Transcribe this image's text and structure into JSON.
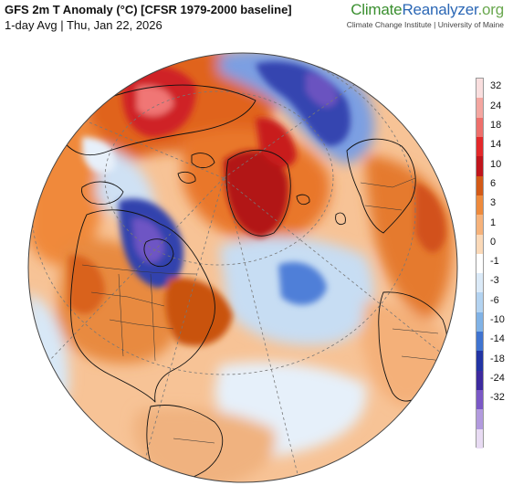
{
  "header": {
    "title": "GFS 2m T Anomaly (°C) [CFSR 1979-2000 baseline]",
    "subtitle": "1-day Avg | Thu, Jan 22, 2026"
  },
  "logo": {
    "climate": "Climate",
    "reanalyzer": "Reanalyzer",
    "tld": ".org",
    "affiliation": "Climate Change Institute | University of Maine"
  },
  "colorbar": {
    "labels": [
      "32",
      "24",
      "18",
      "14",
      "10",
      "6",
      "3",
      "1",
      "0",
      "-1",
      "-3",
      "-6",
      "-10",
      "-14",
      "-18",
      "-24",
      "-32"
    ],
    "colors": [
      "#f9dede",
      "#f4a6a0",
      "#ee6f6b",
      "#e3282a",
      "#c0151c",
      "#d35a17",
      "#ee8a3c",
      "#f6b27a",
      "#fbd9b8",
      "#ffffff",
      "#dbeaf8",
      "#b3d3f1",
      "#80b2e6",
      "#3f73d0",
      "#2234a4",
      "#3d2a9f",
      "#7a58c6",
      "#b29ade",
      "#e8dbf3"
    ]
  }
}
